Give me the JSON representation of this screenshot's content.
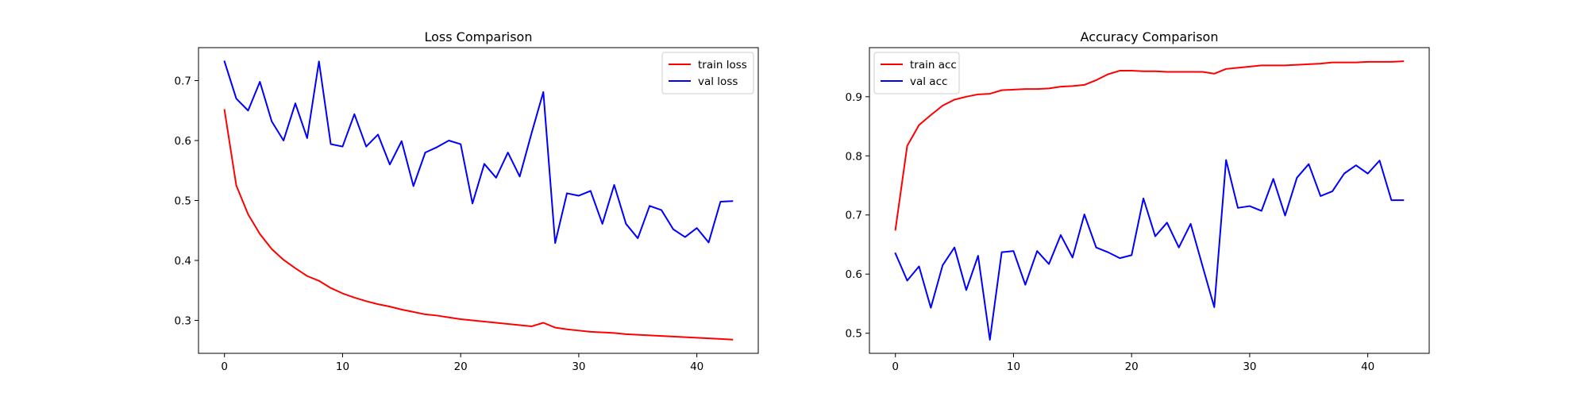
{
  "chart_data": [
    {
      "type": "line",
      "title": "Loss Comparison",
      "xlabel": "",
      "ylabel": "",
      "xlim": [
        -2.2,
        45.2
      ],
      "ylim": [
        0.245,
        0.755
      ],
      "xticks": [
        0,
        10,
        20,
        30,
        40
      ],
      "yticks": [
        0.3,
        0.4,
        0.5,
        0.6,
        0.7
      ],
      "grid": false,
      "legend_position": "top-right",
      "x": [
        0,
        1,
        2,
        3,
        4,
        5,
        6,
        7,
        8,
        9,
        10,
        11,
        12,
        13,
        14,
        15,
        16,
        17,
        18,
        19,
        20,
        21,
        22,
        23,
        24,
        25,
        26,
        27,
        28,
        29,
        30,
        31,
        32,
        33,
        34,
        35,
        36,
        37,
        38,
        39,
        40,
        41,
        42,
        43
      ],
      "series": [
        {
          "name": "train loss",
          "color": "#ff0000",
          "values": [
            0.651,
            0.525,
            0.477,
            0.444,
            0.419,
            0.401,
            0.387,
            0.374,
            0.366,
            0.354,
            0.345,
            0.338,
            0.332,
            0.327,
            0.323,
            0.318,
            0.314,
            0.31,
            0.308,
            0.305,
            0.302,
            0.3,
            0.298,
            0.296,
            0.294,
            0.292,
            0.29,
            0.296,
            0.288,
            0.285,
            0.283,
            0.281,
            0.28,
            0.279,
            0.277,
            0.276,
            0.275,
            0.274,
            0.273,
            0.272,
            0.271,
            0.27,
            0.269,
            0.268
          ]
        },
        {
          "name": "val loss",
          "color": "#0000ff",
          "values": [
            0.732,
            0.67,
            0.65,
            0.698,
            0.632,
            0.6,
            0.662,
            0.604,
            0.732,
            0.594,
            0.59,
            0.644,
            0.59,
            0.61,
            0.56,
            0.599,
            0.524,
            0.58,
            0.589,
            0.6,
            0.594,
            0.495,
            0.561,
            0.538,
            0.58,
            0.54,
            0.612,
            0.681,
            0.429,
            0.512,
            0.508,
            0.516,
            0.461,
            0.526,
            0.461,
            0.437,
            0.491,
            0.484,
            0.452,
            0.439,
            0.454,
            0.43,
            0.498,
            0.499
          ]
        }
      ]
    },
    {
      "type": "line",
      "title": "Accuracy Comparison",
      "xlabel": "",
      "ylabel": "",
      "xlim": [
        -2.2,
        45.2
      ],
      "ylim": [
        0.466,
        0.983
      ],
      "xticks": [
        0,
        10,
        20,
        30,
        40
      ],
      "yticks": [
        0.5,
        0.6,
        0.7,
        0.8,
        0.9
      ],
      "grid": false,
      "legend_position": "top-left",
      "x": [
        0,
        1,
        2,
        3,
        4,
        5,
        6,
        7,
        8,
        9,
        10,
        11,
        12,
        13,
        14,
        15,
        16,
        17,
        18,
        19,
        20,
        21,
        22,
        23,
        24,
        25,
        26,
        27,
        28,
        29,
        30,
        31,
        32,
        33,
        34,
        35,
        36,
        37,
        38,
        39,
        40,
        41,
        42,
        43
      ],
      "series": [
        {
          "name": "train acc",
          "color": "#ff0000",
          "values": [
            0.675,
            0.817,
            0.852,
            0.869,
            0.885,
            0.895,
            0.9,
            0.904,
            0.905,
            0.911,
            0.912,
            0.913,
            0.913,
            0.914,
            0.917,
            0.918,
            0.92,
            0.928,
            0.938,
            0.944,
            0.944,
            0.943,
            0.943,
            0.942,
            0.942,
            0.942,
            0.942,
            0.939,
            0.947,
            0.949,
            0.951,
            0.953,
            0.953,
            0.953,
            0.954,
            0.955,
            0.956,
            0.958,
            0.958,
            0.958,
            0.959,
            0.959,
            0.959,
            0.96
          ]
        },
        {
          "name": "val acc",
          "color": "#0000ff",
          "values": [
            0.635,
            0.589,
            0.613,
            0.543,
            0.615,
            0.645,
            0.573,
            0.631,
            0.489,
            0.637,
            0.639,
            0.582,
            0.639,
            0.617,
            0.666,
            0.628,
            0.701,
            0.645,
            0.637,
            0.627,
            0.632,
            0.728,
            0.664,
            0.687,
            0.645,
            0.685,
            0.614,
            0.544,
            0.793,
            0.712,
            0.715,
            0.707,
            0.761,
            0.699,
            0.763,
            0.786,
            0.732,
            0.74,
            0.77,
            0.784,
            0.77,
            0.792,
            0.725,
            0.725
          ]
        }
      ]
    }
  ]
}
